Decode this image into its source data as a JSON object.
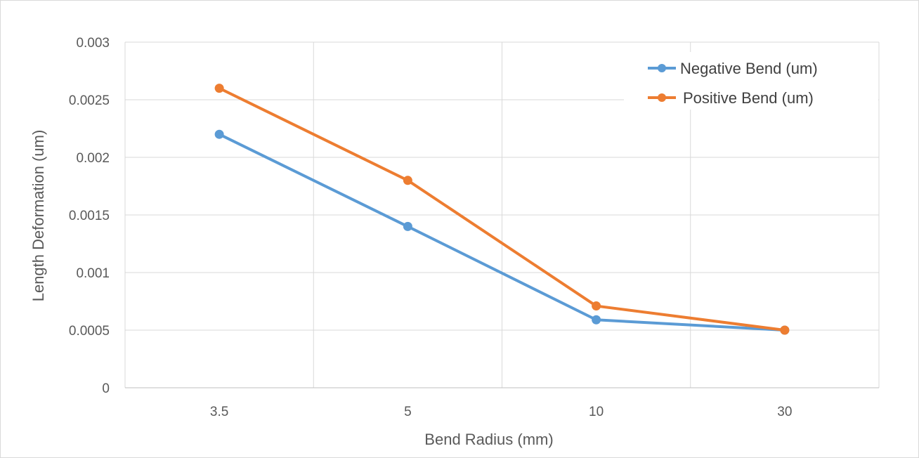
{
  "chart_data": {
    "type": "line",
    "categories": [
      "3.5",
      "5",
      "10",
      "30"
    ],
    "series": [
      {
        "name": "Negative Bend (um)",
        "values": [
          0.0022,
          0.0014,
          0.00059,
          0.0005
        ],
        "color": "#5b9bd5"
      },
      {
        "name": "Positive Bend (um)",
        "values": [
          0.0026,
          0.0018,
          0.00071,
          0.0005
        ],
        "color": "#ed7d31"
      }
    ],
    "title": "",
    "xlabel": "Bend Radius (mm)",
    "ylabel": "Length Deformation (um)",
    "ylim": [
      0,
      0.003
    ],
    "yticks": [
      "0",
      "0.0005",
      "0.001",
      "0.0015",
      "0.002",
      "0.0025",
      "0.003"
    ],
    "grid": true,
    "legend_position": "top-right"
  }
}
